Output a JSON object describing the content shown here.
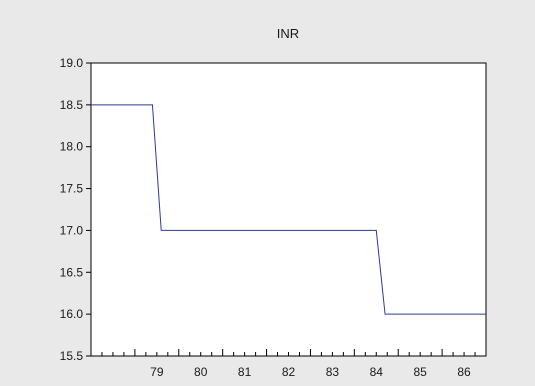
{
  "chart_data": {
    "type": "line",
    "title": "INR",
    "xlabel": "",
    "ylabel": "",
    "xlim": [
      78.0,
      87.0
    ],
    "ylim": [
      15.5,
      19.0
    ],
    "x_ticks": [
      "79",
      "80",
      "81",
      "82",
      "83",
      "84",
      "85",
      "86"
    ],
    "y_ticks": [
      "15.5",
      "16.0",
      "16.5",
      "17.0",
      "17.5",
      "18.0",
      "18.5",
      "19.0"
    ],
    "grid": false,
    "colors": {
      "background": "#e9e9e9",
      "plot": "#ffffff",
      "line": "#2b3a9b"
    },
    "series": [
      {
        "x": [
          78.0,
          79.4,
          79.6,
          84.5,
          84.7,
          87.0
        ],
        "values": [
          18.5,
          18.5,
          17.0,
          17.0,
          16.0,
          16.0
        ]
      }
    ]
  }
}
